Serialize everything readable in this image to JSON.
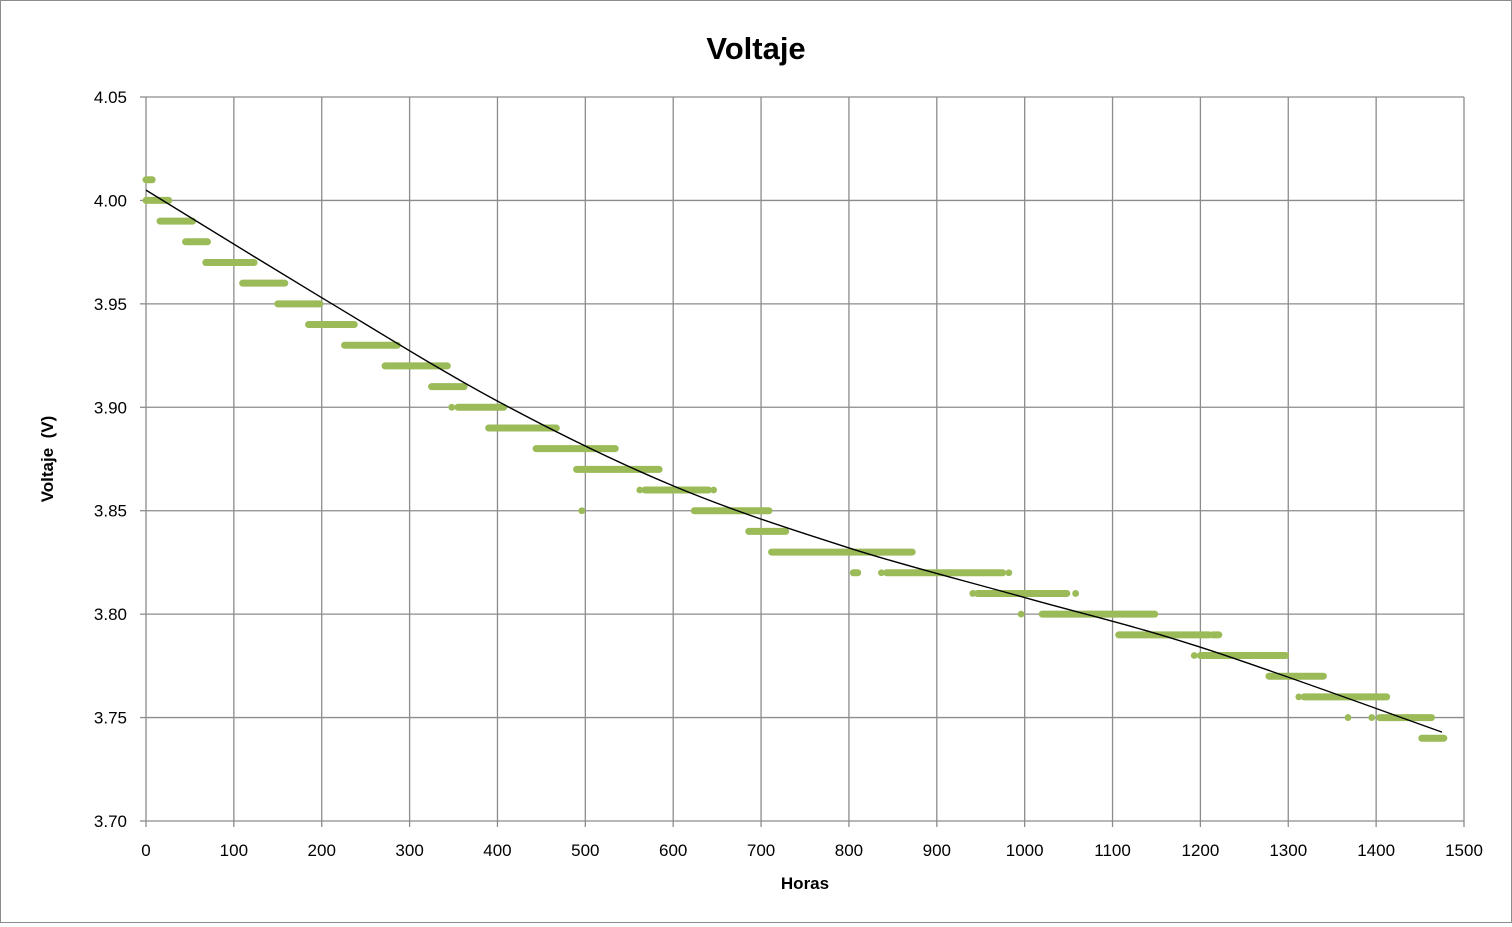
{
  "chart_data": {
    "type": "scatter",
    "title": "Voltaje",
    "xlabel": "Horas",
    "ylabel": "Voltaje  (V)",
    "xlim": [
      0,
      1500
    ],
    "ylim": [
      3.7,
      4.05
    ],
    "xticks": [
      "0",
      "100",
      "200",
      "300",
      "400",
      "500",
      "600",
      "700",
      "800",
      "900",
      "1000",
      "1100",
      "1200",
      "1300",
      "1400",
      "1500"
    ],
    "yticks": [
      "3.70",
      "3.75",
      "3.80",
      "3.85",
      "3.90",
      "3.95",
      "4.00",
      "4.05"
    ],
    "grid": true,
    "legend": "none",
    "marker_color": "#9bbb59",
    "trend_color": "#000000",
    "trendline": {
      "x": [
        0,
        200,
        400,
        600,
        800,
        1000,
        1200,
        1475
      ],
      "y": [
        4.005,
        3.953,
        3.903,
        3.862,
        3.832,
        3.808,
        3.784,
        3.743
      ]
    },
    "series": [
      {
        "segments": [
          {
            "x0": 0,
            "x1": 7,
            "y": 4.01
          },
          {
            "x0": 0,
            "x1": 26,
            "y": 4.0
          },
          {
            "x0": 16,
            "x1": 53,
            "y": 3.99
          },
          {
            "x0": 45,
            "x1": 70,
            "y": 3.98
          },
          {
            "x0": 68,
            "x1": 123,
            "y": 3.97
          },
          {
            "x0": 110,
            "x1": 158,
            "y": 3.96
          },
          {
            "x0": 150,
            "x1": 198,
            "y": 3.95
          },
          {
            "x0": 185,
            "x1": 237,
            "y": 3.94
          },
          {
            "x0": 226,
            "x1": 286,
            "y": 3.93
          },
          {
            "x0": 272,
            "x1": 343,
            "y": 3.92
          },
          {
            "x0": 325,
            "x1": 362,
            "y": 3.91
          },
          {
            "x0": 355,
            "x1": 407,
            "y": 3.9
          },
          {
            "x0": 390,
            "x1": 467,
            "y": 3.89
          },
          {
            "x0": 444,
            "x1": 514,
            "y": 3.88
          },
          {
            "x0": 516,
            "x1": 534,
            "y": 3.88
          },
          {
            "x0": 490,
            "x1": 584,
            "y": 3.87
          },
          {
            "x0": 568,
            "x1": 640,
            "y": 3.86
          },
          {
            "x0": 624,
            "x1": 709,
            "y": 3.85
          },
          {
            "x0": 686,
            "x1": 728,
            "y": 3.84
          },
          {
            "x0": 712,
            "x1": 872,
            "y": 3.83
          },
          {
            "x0": 805,
            "x1": 810,
            "y": 3.82
          },
          {
            "x0": 843,
            "x1": 958,
            "y": 3.82
          },
          {
            "x0": 960,
            "x1": 975,
            "y": 3.82
          },
          {
            "x0": 946,
            "x1": 1048,
            "y": 3.81
          },
          {
            "x0": 1020,
            "x1": 1148,
            "y": 3.8
          },
          {
            "x0": 1107,
            "x1": 1210,
            "y": 3.79
          },
          {
            "x0": 1214,
            "x1": 1221,
            "y": 3.79
          },
          {
            "x0": 1200,
            "x1": 1297,
            "y": 3.78
          },
          {
            "x0": 1278,
            "x1": 1340,
            "y": 3.77
          },
          {
            "x0": 1318,
            "x1": 1412,
            "y": 3.76
          },
          {
            "x0": 1404,
            "x1": 1463,
            "y": 3.75
          },
          {
            "x0": 1452,
            "x1": 1477,
            "y": 3.74
          }
        ],
        "isolated_points": [
          {
            "x": 348,
            "y": 3.9
          },
          {
            "x": 496,
            "y": 3.85
          },
          {
            "x": 562,
            "y": 3.86
          },
          {
            "x": 646,
            "y": 3.86
          },
          {
            "x": 837,
            "y": 3.82
          },
          {
            "x": 982,
            "y": 3.82
          },
          {
            "x": 941,
            "y": 3.81
          },
          {
            "x": 1058,
            "y": 3.81
          },
          {
            "x": 996,
            "y": 3.8
          },
          {
            "x": 1193,
            "y": 3.78
          },
          {
            "x": 1312,
            "y": 3.76
          },
          {
            "x": 1368,
            "y": 3.75
          },
          {
            "x": 1395,
            "y": 3.75
          }
        ]
      }
    ]
  }
}
